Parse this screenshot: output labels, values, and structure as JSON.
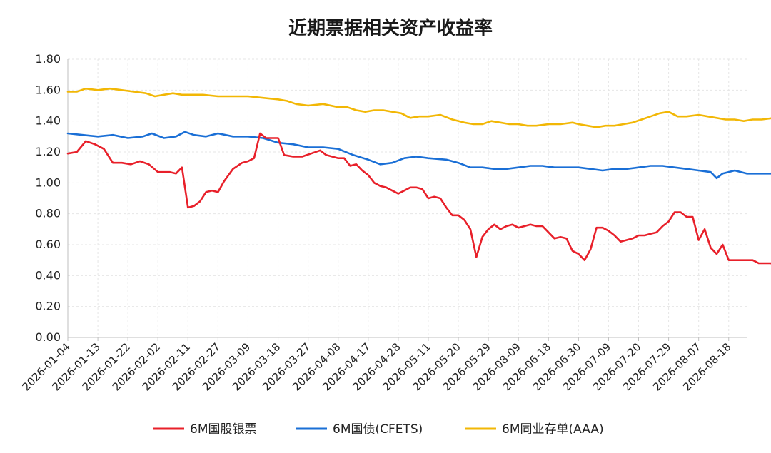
{
  "chart_data": {
    "type": "line",
    "title": "近期票据相关资产收益率",
    "xlabel": "",
    "ylabel": "",
    "ylim": [
      0,
      1.8
    ],
    "yticks": [
      "0.00",
      "0.20",
      "0.40",
      "0.60",
      "0.80",
      "1.00",
      "1.20",
      "1.40",
      "1.60",
      "1.80"
    ],
    "grid": true,
    "legend": "bottom",
    "x_tick_labels": [
      "2026-01-04",
      "2026-01-13",
      "2026-01-22",
      "2026-02-02",
      "2026-02-11",
      "2026-02-27",
      "2026-03-09",
      "2026-03-18",
      "2026-03-27",
      "2026-04-08",
      "2026-04-17",
      "2026-04-28",
      "2026-05-11",
      "2026-05-20",
      "2026-05-29",
      "2026-08-09",
      "2026-06-18",
      "2026-06-30",
      "2026-07-09",
      "2026-07-20",
      "2026-07-29",
      "2026-08-07",
      "2026-08-18"
    ],
    "series": [
      {
        "name": "6M国股银票",
        "color": "#e8202a",
        "points": [
          [
            0,
            1.19
          ],
          [
            0.3,
            1.2
          ],
          [
            0.6,
            1.27
          ],
          [
            0.9,
            1.25
          ],
          [
            1.2,
            1.22
          ],
          [
            1.5,
            1.13
          ],
          [
            1.8,
            1.13
          ],
          [
            2.1,
            1.12
          ],
          [
            2.4,
            1.14
          ],
          [
            2.7,
            1.12
          ],
          [
            3.0,
            1.07
          ],
          [
            3.2,
            1.07
          ],
          [
            3.4,
            1.07
          ],
          [
            3.6,
            1.06
          ],
          [
            3.8,
            1.1
          ],
          [
            4.0,
            0.84
          ],
          [
            4.2,
            0.85
          ],
          [
            4.4,
            0.88
          ],
          [
            4.6,
            0.94
          ],
          [
            4.8,
            0.95
          ],
          [
            5.0,
            0.94
          ],
          [
            5.2,
            1.01
          ],
          [
            5.5,
            1.09
          ],
          [
            5.8,
            1.13
          ],
          [
            6.0,
            1.14
          ],
          [
            6.2,
            1.16
          ],
          [
            6.4,
            1.32
          ],
          [
            6.6,
            1.29
          ],
          [
            6.8,
            1.29
          ],
          [
            7.0,
            1.29
          ],
          [
            7.2,
            1.18
          ],
          [
            7.5,
            1.17
          ],
          [
            7.8,
            1.17
          ],
          [
            8.1,
            1.19
          ],
          [
            8.4,
            1.21
          ],
          [
            8.6,
            1.18
          ],
          [
            8.8,
            1.17
          ],
          [
            9.0,
            1.16
          ],
          [
            9.2,
            1.16
          ],
          [
            9.4,
            1.11
          ],
          [
            9.6,
            1.12
          ],
          [
            9.8,
            1.08
          ],
          [
            10.0,
            1.05
          ],
          [
            10.2,
            1.0
          ],
          [
            10.4,
            0.98
          ],
          [
            10.6,
            0.97
          ],
          [
            10.8,
            0.95
          ],
          [
            11.0,
            0.93
          ],
          [
            11.2,
            0.95
          ],
          [
            11.4,
            0.97
          ],
          [
            11.6,
            0.97
          ],
          [
            11.8,
            0.96
          ],
          [
            12.0,
            0.9
          ],
          [
            12.2,
            0.91
          ],
          [
            12.4,
            0.9
          ],
          [
            12.6,
            0.84
          ],
          [
            12.8,
            0.79
          ],
          [
            13.0,
            0.79
          ],
          [
            13.2,
            0.76
          ],
          [
            13.4,
            0.7
          ],
          [
            13.6,
            0.52
          ],
          [
            13.8,
            0.65
          ],
          [
            14.0,
            0.7
          ],
          [
            14.2,
            0.73
          ],
          [
            14.4,
            0.7
          ],
          [
            14.6,
            0.72
          ],
          [
            14.8,
            0.73
          ],
          [
            15.0,
            0.71
          ],
          [
            15.2,
            0.72
          ],
          [
            15.4,
            0.73
          ],
          [
            15.6,
            0.72
          ],
          [
            15.8,
            0.72
          ],
          [
            16.0,
            0.68
          ],
          [
            16.2,
            0.64
          ],
          [
            16.4,
            0.65
          ],
          [
            16.6,
            0.64
          ],
          [
            16.8,
            0.56
          ],
          [
            17.0,
            0.54
          ],
          [
            17.2,
            0.5
          ],
          [
            17.4,
            0.57
          ],
          [
            17.6,
            0.71
          ],
          [
            17.8,
            0.71
          ],
          [
            18.0,
            0.69
          ],
          [
            18.2,
            0.66
          ],
          [
            18.4,
            0.62
          ],
          [
            18.6,
            0.63
          ],
          [
            18.8,
            0.64
          ],
          [
            19.0,
            0.66
          ],
          [
            19.2,
            0.66
          ],
          [
            19.4,
            0.67
          ],
          [
            19.6,
            0.68
          ],
          [
            19.8,
            0.72
          ],
          [
            20.0,
            0.75
          ],
          [
            20.2,
            0.81
          ],
          [
            20.4,
            0.81
          ],
          [
            20.6,
            0.78
          ],
          [
            20.8,
            0.78
          ],
          [
            21.0,
            0.63
          ],
          [
            21.2,
            0.7
          ],
          [
            21.4,
            0.58
          ],
          [
            21.6,
            0.54
          ],
          [
            21.8,
            0.6
          ],
          [
            22.0,
            0.5
          ],
          [
            22.4,
            0.5
          ],
          [
            22.8,
            0.5
          ],
          [
            23.0,
            0.48
          ],
          [
            23.4,
            0.48
          ],
          [
            23.6,
            0.46
          ],
          [
            23.8,
            0.43
          ],
          [
            24.0,
            0.37
          ],
          [
            24.2,
            0.42
          ],
          [
            24.4,
            0.39
          ],
          [
            24.6,
            0.39
          ],
          [
            24.8,
            0.42
          ],
          [
            25.0,
            0.5
          ],
          [
            26.0,
            0.5
          ],
          [
            27.0,
            0.5
          ],
          [
            28.0,
            0.5
          ],
          [
            28.6,
            0.5
          ]
        ]
      },
      {
        "name": "6M国债(CFETS)",
        "color": "#1a6fd6",
        "points": [
          [
            0,
            1.32
          ],
          [
            0.5,
            1.31
          ],
          [
            1.0,
            1.3
          ],
          [
            1.5,
            1.31
          ],
          [
            2.0,
            1.29
          ],
          [
            2.5,
            1.3
          ],
          [
            2.8,
            1.32
          ],
          [
            3.2,
            1.29
          ],
          [
            3.6,
            1.3
          ],
          [
            3.9,
            1.33
          ],
          [
            4.2,
            1.31
          ],
          [
            4.6,
            1.3
          ],
          [
            5.0,
            1.32
          ],
          [
            5.5,
            1.3
          ],
          [
            6.0,
            1.3
          ],
          [
            6.5,
            1.29
          ],
          [
            7.0,
            1.26
          ],
          [
            7.5,
            1.25
          ],
          [
            8.0,
            1.23
          ],
          [
            8.5,
            1.23
          ],
          [
            9.0,
            1.22
          ],
          [
            9.5,
            1.18
          ],
          [
            10.0,
            1.15
          ],
          [
            10.4,
            1.12
          ],
          [
            10.8,
            1.13
          ],
          [
            11.2,
            1.16
          ],
          [
            11.6,
            1.17
          ],
          [
            12.0,
            1.16
          ],
          [
            12.6,
            1.15
          ],
          [
            13.0,
            1.13
          ],
          [
            13.4,
            1.1
          ],
          [
            13.8,
            1.1
          ],
          [
            14.2,
            1.09
          ],
          [
            14.6,
            1.09
          ],
          [
            15.0,
            1.1
          ],
          [
            15.4,
            1.11
          ],
          [
            15.8,
            1.11
          ],
          [
            16.2,
            1.1
          ],
          [
            16.6,
            1.1
          ],
          [
            17.0,
            1.1
          ],
          [
            17.4,
            1.09
          ],
          [
            17.8,
            1.08
          ],
          [
            18.2,
            1.09
          ],
          [
            18.6,
            1.09
          ],
          [
            19.0,
            1.1
          ],
          [
            19.4,
            1.11
          ],
          [
            19.8,
            1.11
          ],
          [
            20.2,
            1.1
          ],
          [
            20.6,
            1.09
          ],
          [
            21.0,
            1.08
          ],
          [
            21.4,
            1.07
          ],
          [
            21.6,
            1.03
          ],
          [
            21.8,
            1.06
          ],
          [
            22.2,
            1.08
          ],
          [
            22.6,
            1.06
          ],
          [
            23.0,
            1.06
          ],
          [
            23.4,
            1.06
          ],
          [
            23.8,
            1.08
          ],
          [
            24.2,
            1.07
          ],
          [
            24.6,
            1.09
          ],
          [
            25.0,
            1.09
          ],
          [
            25.3,
            1.09
          ],
          [
            25.5,
            1.16
          ],
          [
            25.8,
            1.17
          ],
          [
            26.2,
            1.18
          ],
          [
            26.6,
            1.19
          ],
          [
            27.0,
            1.19
          ],
          [
            27.4,
            1.19
          ],
          [
            27.8,
            1.18
          ],
          [
            28.2,
            1.18
          ],
          [
            28.4,
            1.17
          ],
          [
            28.6,
            1.19
          ]
        ]
      },
      {
        "name": "6M同业存单(AAA)",
        "color": "#f2b705",
        "points": [
          [
            0,
            1.59
          ],
          [
            0.3,
            1.59
          ],
          [
            0.6,
            1.61
          ],
          [
            1.0,
            1.6
          ],
          [
            1.4,
            1.61
          ],
          [
            1.8,
            1.6
          ],
          [
            2.2,
            1.59
          ],
          [
            2.6,
            1.58
          ],
          [
            2.9,
            1.56
          ],
          [
            3.2,
            1.57
          ],
          [
            3.5,
            1.58
          ],
          [
            3.8,
            1.57
          ],
          [
            4.0,
            1.57
          ],
          [
            4.5,
            1.57
          ],
          [
            5.0,
            1.56
          ],
          [
            5.5,
            1.56
          ],
          [
            6.0,
            1.56
          ],
          [
            6.5,
            1.55
          ],
          [
            7.0,
            1.54
          ],
          [
            7.3,
            1.53
          ],
          [
            7.6,
            1.51
          ],
          [
            8.0,
            1.5
          ],
          [
            8.5,
            1.51
          ],
          [
            9.0,
            1.49
          ],
          [
            9.3,
            1.49
          ],
          [
            9.6,
            1.47
          ],
          [
            9.9,
            1.46
          ],
          [
            10.2,
            1.47
          ],
          [
            10.5,
            1.47
          ],
          [
            10.8,
            1.46
          ],
          [
            11.1,
            1.45
          ],
          [
            11.4,
            1.42
          ],
          [
            11.7,
            1.43
          ],
          [
            12.0,
            1.43
          ],
          [
            12.4,
            1.44
          ],
          [
            12.8,
            1.41
          ],
          [
            13.2,
            1.39
          ],
          [
            13.5,
            1.38
          ],
          [
            13.8,
            1.38
          ],
          [
            14.1,
            1.4
          ],
          [
            14.4,
            1.39
          ],
          [
            14.7,
            1.38
          ],
          [
            15.0,
            1.38
          ],
          [
            15.3,
            1.37
          ],
          [
            15.6,
            1.37
          ],
          [
            16.0,
            1.38
          ],
          [
            16.4,
            1.38
          ],
          [
            16.8,
            1.39
          ],
          [
            17.0,
            1.38
          ],
          [
            17.3,
            1.37
          ],
          [
            17.6,
            1.36
          ],
          [
            17.9,
            1.37
          ],
          [
            18.2,
            1.37
          ],
          [
            18.5,
            1.38
          ],
          [
            18.8,
            1.39
          ],
          [
            19.1,
            1.41
          ],
          [
            19.4,
            1.43
          ],
          [
            19.7,
            1.45
          ],
          [
            20.0,
            1.46
          ],
          [
            20.3,
            1.43
          ],
          [
            20.6,
            1.43
          ],
          [
            21.0,
            1.44
          ],
          [
            21.3,
            1.43
          ],
          [
            21.6,
            1.42
          ],
          [
            21.9,
            1.41
          ],
          [
            22.2,
            1.41
          ],
          [
            22.5,
            1.4
          ],
          [
            22.8,
            1.41
          ],
          [
            23.1,
            1.41
          ],
          [
            23.5,
            1.42
          ],
          [
            24.0,
            1.42
          ],
          [
            24.5,
            1.42
          ],
          [
            25.0,
            1.43
          ],
          [
            25.5,
            1.43
          ],
          [
            26.0,
            1.43
          ],
          [
            26.3,
            1.44
          ],
          [
            26.6,
            1.43
          ],
          [
            27.0,
            1.44
          ],
          [
            27.4,
            1.44
          ],
          [
            27.8,
            1.44
          ],
          [
            28.2,
            1.43
          ],
          [
            28.6,
            1.44
          ]
        ]
      }
    ]
  }
}
